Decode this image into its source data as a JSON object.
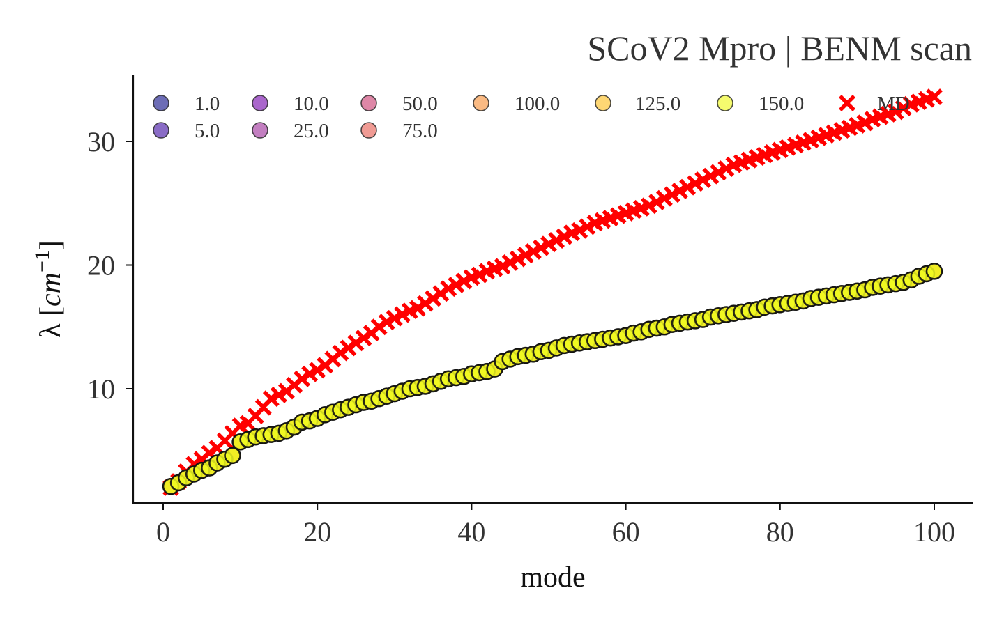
{
  "chart_data": {
    "type": "scatter",
    "title": "SCoV2 Mpro | BENM scan",
    "xlabel": "mode",
    "ylabel_parts": {
      "prefix": "λ [",
      "unit": "cm",
      "exponent": "−1",
      "suffix": "]"
    },
    "xlim": [
      -4,
      105
    ],
    "ylim": [
      0.8,
      35.5
    ],
    "xticks": [
      0,
      20,
      40,
      60,
      80,
      100
    ],
    "yticks": [
      10,
      20,
      30
    ],
    "grid": false,
    "legend_placement": "top-left",
    "legend_columns": 7,
    "series": [
      {
        "name": "1.0",
        "color": "#1f1f8f",
        "marker": "circle",
        "values_ref": "benm"
      },
      {
        "name": "5.0",
        "color": "#4b1da8",
        "marker": "circle",
        "values_ref": "benm"
      },
      {
        "name": "10.0",
        "color": "#7c15b0",
        "marker": "circle",
        "values_ref": "benm"
      },
      {
        "name": "25.0",
        "color": "#a33aa0",
        "marker": "circle",
        "values_ref": "benm"
      },
      {
        "name": "50.0",
        "color": "#cc4778",
        "marker": "circle",
        "values_ref": "benm"
      },
      {
        "name": "75.0",
        "color": "#e8655a",
        "marker": "circle",
        "values_ref": "benm"
      },
      {
        "name": "100.0",
        "color": "#f89540",
        "marker": "circle",
        "values_ref": "benm"
      },
      {
        "name": "125.0",
        "color": "#fdc229",
        "marker": "circle",
        "values_ref": "benm"
      },
      {
        "name": "150.0",
        "color": "#f0f921",
        "marker": "circle",
        "values_ref": "benm"
      },
      {
        "name": "MD",
        "color": "#ff0000",
        "marker": "x",
        "values_ref": "md"
      }
    ],
    "x": [
      1,
      2,
      3,
      4,
      5,
      6,
      7,
      8,
      9,
      10,
      11,
      12,
      13,
      14,
      15,
      16,
      17,
      18,
      19,
      20,
      21,
      22,
      23,
      24,
      25,
      26,
      27,
      28,
      29,
      30,
      31,
      32,
      33,
      34,
      35,
      36,
      37,
      38,
      39,
      40,
      41,
      42,
      43,
      44,
      45,
      46,
      47,
      48,
      49,
      50,
      51,
      52,
      53,
      54,
      55,
      56,
      57,
      58,
      59,
      60,
      61,
      62,
      63,
      64,
      65,
      66,
      67,
      68,
      69,
      70,
      71,
      72,
      73,
      74,
      75,
      76,
      77,
      78,
      79,
      80,
      81,
      82,
      83,
      84,
      85,
      86,
      87,
      88,
      89,
      90,
      91,
      92,
      93,
      94,
      95,
      96,
      97,
      98,
      99,
      100
    ],
    "benm": [
      2.1,
      2.4,
      2.8,
      3.1,
      3.4,
      3.6,
      4.0,
      4.3,
      4.6,
      5.7,
      5.9,
      6.1,
      6.2,
      6.3,
      6.4,
      6.6,
      6.9,
      7.3,
      7.4,
      7.6,
      7.9,
      8.1,
      8.3,
      8.5,
      8.7,
      8.9,
      9.0,
      9.2,
      9.4,
      9.6,
      9.8,
      10.0,
      10.1,
      10.2,
      10.4,
      10.6,
      10.8,
      10.9,
      11.0,
      11.2,
      11.3,
      11.4,
      11.6,
      12.2,
      12.4,
      12.6,
      12.7,
      12.8,
      13.0,
      13.1,
      13.3,
      13.5,
      13.6,
      13.7,
      13.8,
      13.9,
      14.0,
      14.1,
      14.2,
      14.3,
      14.5,
      14.6,
      14.8,
      14.9,
      15.0,
      15.2,
      15.3,
      15.4,
      15.5,
      15.6,
      15.8,
      15.9,
      16.0,
      16.1,
      16.2,
      16.3,
      16.4,
      16.6,
      16.7,
      16.8,
      16.9,
      17.0,
      17.1,
      17.3,
      17.4,
      17.5,
      17.6,
      17.7,
      17.8,
      17.9,
      18.0,
      18.2,
      18.3,
      18.4,
      18.5,
      18.6,
      18.8,
      19.1,
      19.3,
      19.5
    ],
    "md": [
      2.0,
      2.5,
      3.3,
      3.9,
      4.3,
      4.8,
      5.2,
      5.8,
      6.4,
      7.0,
      7.2,
      7.8,
      8.5,
      9.2,
      9.5,
      9.8,
      10.3,
      10.8,
      11.2,
      11.5,
      11.9,
      12.4,
      12.9,
      13.3,
      13.7,
      14.1,
      14.5,
      15.0,
      15.4,
      15.7,
      16.0,
      16.3,
      16.5,
      16.9,
      17.3,
      17.7,
      18.1,
      18.4,
      18.7,
      19.0,
      19.2,
      19.5,
      19.7,
      19.9,
      20.2,
      20.5,
      20.8,
      21.1,
      21.4,
      21.7,
      22.0,
      22.3,
      22.6,
      22.8,
      23.1,
      23.4,
      23.6,
      23.8,
      24.0,
      24.2,
      24.4,
      24.6,
      24.8,
      25.1,
      25.4,
      25.7,
      26.0,
      26.3,
      26.6,
      26.9,
      27.2,
      27.5,
      27.8,
      28.1,
      28.3,
      28.5,
      28.7,
      28.9,
      29.1,
      29.3,
      29.5,
      29.7,
      29.9,
      30.1,
      30.3,
      30.5,
      30.7,
      30.9,
      31.1,
      31.3,
      31.5,
      31.8,
      32.0,
      32.2,
      32.4,
      32.7,
      33.0,
      33.2,
      33.4,
      33.6
    ]
  }
}
